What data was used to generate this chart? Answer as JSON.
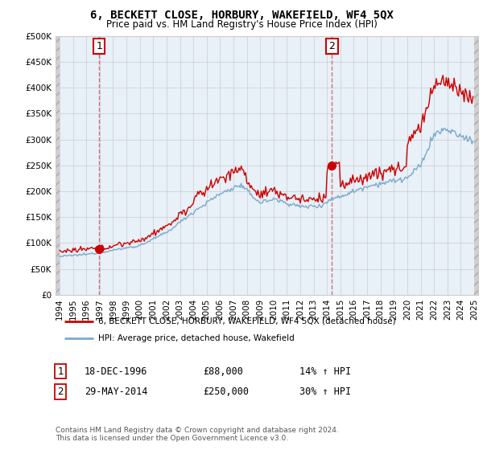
{
  "title": "6, BECKETT CLOSE, HORBURY, WAKEFIELD, WF4 5QX",
  "subtitle": "Price paid vs. HM Land Registry's House Price Index (HPI)",
  "legend_line1": "6, BECKETT CLOSE, HORBURY, WAKEFIELD, WF4 5QX (detached house)",
  "legend_line2": "HPI: Average price, detached house, Wakefield",
  "footer": "Contains HM Land Registry data © Crown copyright and database right 2024.\nThis data is licensed under the Open Government Licence v3.0.",
  "transaction1_date": "18-DEC-1996",
  "transaction1_price": 88000,
  "transaction1_hpi": "14% ↑ HPI",
  "transaction2_date": "29-MAY-2014",
  "transaction2_price": 250000,
  "transaction2_hpi": "30% ↑ HPI",
  "red_color": "#cc0000",
  "blue_color": "#7aaacc",
  "vline_color": "#cc6666",
  "plot_bg_color": "#e8f0f8",
  "hatch_color": "#d0d0d0",
  "ylim": [
    0,
    500000
  ],
  "yticks": [
    0,
    50000,
    100000,
    150000,
    200000,
    250000,
    300000,
    350000,
    400000,
    450000,
    500000
  ],
  "xlim_left": 1993.7,
  "xlim_right": 2025.3,
  "t1_x": 1996.958,
  "t1_y": 88000,
  "t2_x": 2014.375,
  "t2_y": 250000
}
